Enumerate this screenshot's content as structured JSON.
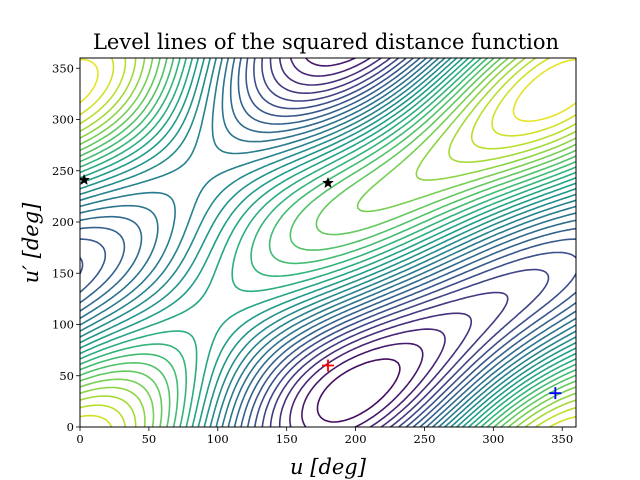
{
  "chart_data": {
    "type": "contour",
    "title": "Level lines of the squared distance function",
    "xlabel": "u [deg]",
    "ylabel": "u′ [deg]",
    "xlim": [
      0,
      360
    ],
    "ylim": [
      0,
      360
    ],
    "xticks": [
      0,
      50,
      100,
      150,
      200,
      250,
      300,
      350
    ],
    "yticks": [
      0,
      50,
      100,
      150,
      200,
      250,
      300,
      350
    ],
    "xtick_labels": [
      "0",
      "50",
      "100",
      "150",
      "200",
      "250",
      "300",
      "350"
    ],
    "ytick_labels": [
      "0",
      "50",
      "100",
      "150",
      "200",
      "250",
      "300",
      "350"
    ],
    "colormap": "viridis",
    "grid": false,
    "markers": [
      {
        "symbol": "plus",
        "color": "#ff0000",
        "x": 180,
        "y": 60
      },
      {
        "symbol": "plus",
        "color": "#0000ff",
        "x": 345,
        "y": 33
      },
      {
        "symbol": "star",
        "color": "#000000",
        "x": 3,
        "y": 241
      },
      {
        "symbol": "star",
        "color": "#000000",
        "x": 180,
        "y": 238
      }
    ]
  }
}
